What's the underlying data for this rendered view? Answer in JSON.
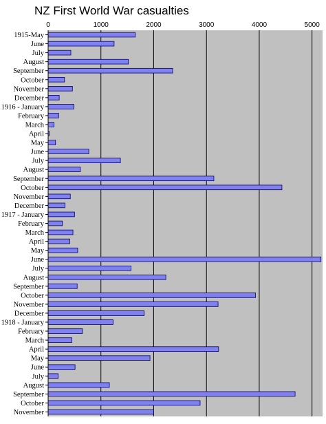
{
  "chart_data": {
    "type": "bar",
    "orientation": "horizontal",
    "title": "NZ First World War casualties",
    "xlabel": "",
    "ylabel": "",
    "xlim": [
      0,
      5200
    ],
    "xticks": [
      0,
      1000,
      2000,
      3000,
      4000,
      5000
    ],
    "grid": true,
    "legend": "none",
    "colors": {
      "plot_background": "#c0c0c0",
      "bar_fill": "#8080ee",
      "bar_stroke": "#00006a",
      "gridline": "#000000"
    },
    "categories": [
      "1915-May",
      "June",
      "July",
      "August",
      "September",
      "October",
      "November",
      "December",
      "1916 - January",
      "February",
      "March",
      "April",
      "May",
      "June",
      "July",
      "August",
      "September",
      "October",
      "November",
      "December",
      "1917 - January",
      "February",
      "March",
      "April",
      "May",
      "June",
      "July",
      "August",
      "September",
      "October",
      "November",
      "December",
      "1918 - January",
      "February",
      "March",
      "April",
      "May",
      "June",
      "July",
      "August",
      "September",
      "October",
      "November"
    ],
    "values": [
      1650,
      1250,
      430,
      1520,
      2360,
      310,
      460,
      210,
      490,
      200,
      110,
      20,
      140,
      770,
      1370,
      610,
      3140,
      4430,
      420,
      320,
      500,
      270,
      470,
      410,
      560,
      5170,
      1570,
      2230,
      550,
      3930,
      3220,
      1820,
      1230,
      650,
      450,
      3230,
      1930,
      510,
      190,
      1160,
      4680,
      2880,
      2000
    ]
  }
}
